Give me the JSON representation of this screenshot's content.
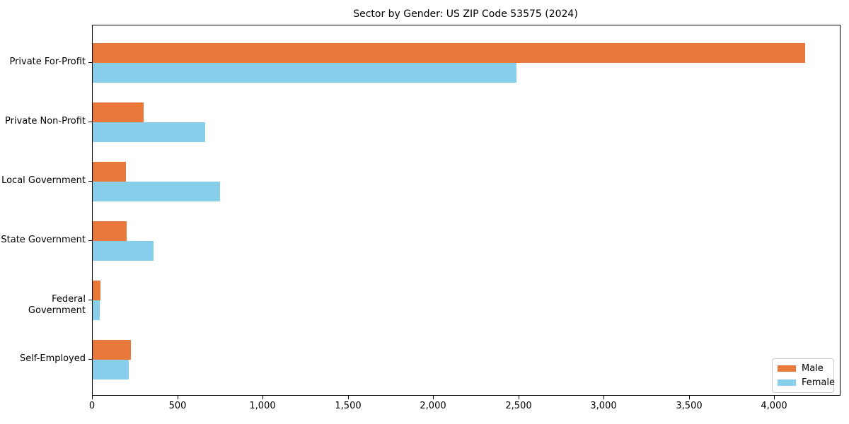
{
  "chart_data": {
    "type": "bar",
    "orientation": "horizontal",
    "title": "Sector by Gender: US ZIP Code 53575 (2024)",
    "categories": [
      "Private For-Profit",
      "Private Non-Profit",
      "Local Government",
      "State Government",
      "Federal Government",
      "Self-Employed"
    ],
    "series": [
      {
        "name": "Male",
        "color": "#e8793b",
        "values": [
          4175,
          300,
          195,
          200,
          45,
          225
        ]
      },
      {
        "name": "Female",
        "color": "#87ceeb",
        "values": [
          2485,
          660,
          745,
          355,
          40,
          210
        ]
      }
    ],
    "xlabel": "",
    "ylabel": "",
    "xlim": [
      0,
      4380
    ],
    "xticks": [
      0,
      500,
      1000,
      1500,
      2000,
      2500,
      3000,
      3500,
      4000
    ],
    "xtick_labels": [
      "0",
      "500",
      "1,000",
      "1,500",
      "2,000",
      "2,500",
      "3,000",
      "3,500",
      "4,000"
    ],
    "grid": false,
    "legend": {
      "position": "lower right",
      "items": [
        {
          "label": "Male",
          "color": "#e8793b"
        },
        {
          "label": "Female",
          "color": "#87ceeb"
        }
      ]
    },
    "colors": {
      "background": "#ffffff",
      "axis": "#000000",
      "legend_border": "#cccccc"
    }
  }
}
